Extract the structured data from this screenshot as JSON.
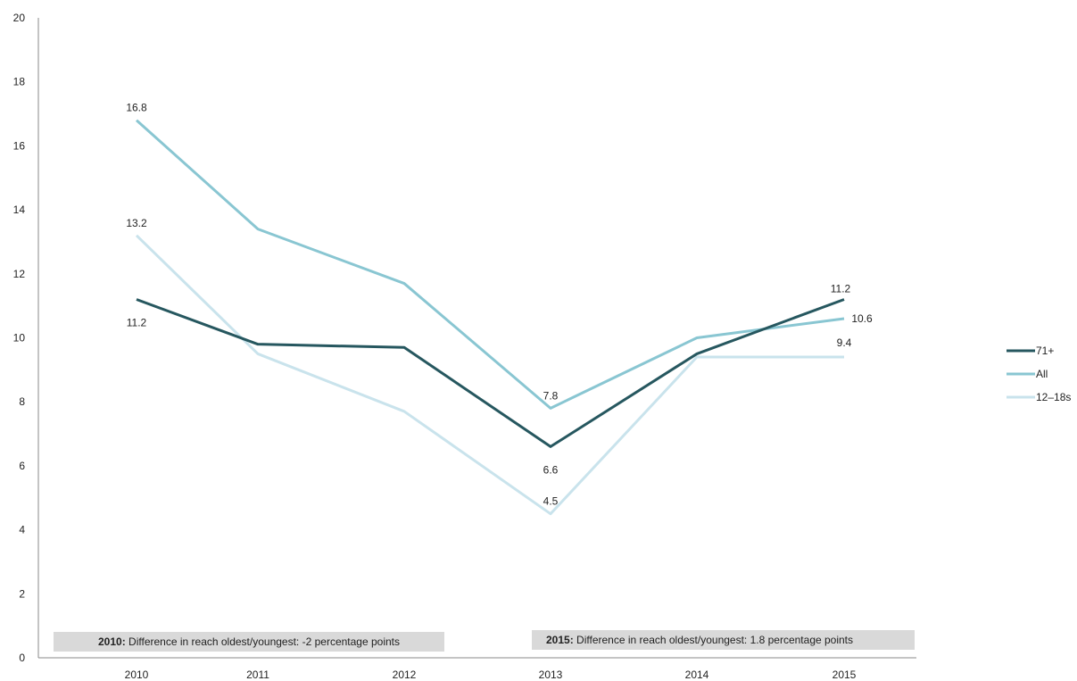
{
  "chart_data": {
    "type": "line",
    "x": [
      "2010",
      "2011",
      "2012",
      "2013",
      "2014",
      "2015"
    ],
    "ylim": [
      0,
      20
    ],
    "yticks": [
      0,
      2,
      4,
      6,
      8,
      10,
      12,
      14,
      16,
      18,
      20
    ],
    "grid": false,
    "legend_position": "right",
    "series": [
      {
        "name": "71+",
        "color": "#26575f",
        "values": [
          11.2,
          9.8,
          9.7,
          6.6,
          9.5,
          11.2
        ]
      },
      {
        "name": "All",
        "color": "#89c6d2",
        "values": [
          16.8,
          13.4,
          11.7,
          7.8,
          10.0,
          10.6
        ]
      },
      {
        "name": "12–18s",
        "color": "#c9e3ec",
        "values": [
          13.2,
          9.5,
          7.7,
          4.5,
          9.4,
          9.4
        ]
      }
    ],
    "data_labels": [
      {
        "series": "All",
        "x": "2010",
        "text": "16.8"
      },
      {
        "series": "12–18s",
        "x": "2010",
        "text": "13.2"
      },
      {
        "series": "71+",
        "x": "2010",
        "text": "11.2"
      },
      {
        "series": "All",
        "x": "2013",
        "text": "7.8"
      },
      {
        "series": "71+",
        "x": "2013",
        "text": "6.6"
      },
      {
        "series": "12–18s",
        "x": "2013",
        "text": "4.5"
      },
      {
        "series": "71+",
        "x": "2015",
        "text": "11.2"
      },
      {
        "series": "All",
        "x": "2015",
        "text": "10.6"
      },
      {
        "series": "12–18s",
        "x": "2015",
        "text": "9.4"
      }
    ],
    "annotations": [
      {
        "bold": "2010:",
        "text": " Difference in reach oldest/youngest: -2 percentage points"
      },
      {
        "bold": "2015:",
        "text": " Difference in reach oldest/youngest: 1.8 percentage points"
      }
    ]
  }
}
